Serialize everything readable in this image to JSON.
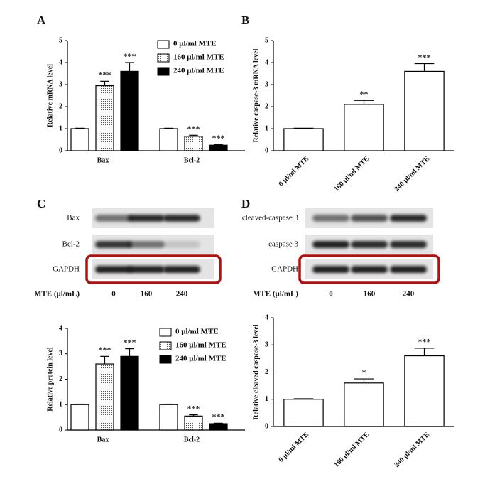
{
  "chart_data": [
    {
      "type": "bar",
      "panel": "A",
      "ylabel": "Relative mRNA level",
      "categories": [
        "Bax",
        "Bcl-2"
      ],
      "series": [
        {
          "name": "0 μl/ml MTE",
          "color": "#ffffff",
          "values": [
            1,
            1
          ],
          "errors": [
            0.02,
            0.02
          ],
          "significance": [
            null,
            null
          ]
        },
        {
          "name": "160 μl/ml MTE",
          "color": "#ffffff",
          "pattern": "dots",
          "values": [
            2.95,
            0.65
          ],
          "errors": [
            0.2,
            0.05
          ],
          "significance": [
            "***",
            "***"
          ]
        },
        {
          "name": "240 μl/ml MTE",
          "color": "#000000",
          "values": [
            3.6,
            0.25
          ],
          "errors": [
            0.4,
            0.03
          ],
          "significance": [
            "***",
            "***"
          ]
        }
      ],
      "ylim": [
        0,
        5
      ],
      "yticks": [
        0,
        1,
        2,
        3,
        4,
        5
      ],
      "legend": "top-right"
    },
    {
      "type": "bar",
      "panel": "B",
      "ylabel": "Relative caspase-3 mRNA level",
      "categories": [
        "0 μl/ml MTE",
        "160 μl/ml MTE",
        "240 μl/ml MTE"
      ],
      "values": [
        1,
        2.1,
        3.6
      ],
      "errors": [
        0.02,
        0.18,
        0.35
      ],
      "significance": [
        null,
        "**",
        "***"
      ],
      "color": "#ffffff",
      "ylim": [
        0,
        5
      ],
      "yticks": [
        0,
        1,
        2,
        3,
        4,
        5
      ]
    },
    {
      "type": "bar",
      "ylabel": "Relative protein level",
      "categories": [
        "Bax",
        "Bcl-2"
      ],
      "series": [
        {
          "name": "0 μl/ml MTE",
          "color": "#ffffff",
          "values": [
            1,
            1
          ],
          "errors": [
            0.02,
            0.02
          ],
          "significance": [
            null,
            null
          ]
        },
        {
          "name": "160 μl/ml MTE",
          "color": "#ffffff",
          "pattern": "dots",
          "values": [
            2.6,
            0.55
          ],
          "errors": [
            0.3,
            0.05
          ],
          "significance": [
            "***",
            "***"
          ]
        },
        {
          "name": "240 μl/ml MTE",
          "color": "#000000",
          "values": [
            2.9,
            0.25
          ],
          "errors": [
            0.3,
            0.02
          ],
          "significance": [
            "***",
            "***"
          ]
        }
      ],
      "ylim": [
        0,
        4
      ],
      "yticks": [
        0,
        1,
        2,
        3,
        4
      ],
      "legend": "top-right"
    },
    {
      "type": "bar",
      "ylabel": "Relative cleaved caspase-3 level",
      "categories": [
        "0 μl/ml MTE",
        "160 μl/ml MTE",
        "240 μl/ml MTE"
      ],
      "values": [
        1,
        1.6,
        2.6
      ],
      "errors": [
        0.02,
        0.15,
        0.28
      ],
      "significance": [
        null,
        "*",
        "***"
      ],
      "color": "#ffffff",
      "ylim": [
        0,
        4
      ],
      "yticks": [
        0,
        1,
        2,
        3,
        4
      ]
    }
  ],
  "blots": [
    {
      "panel": "C",
      "rows": [
        "Bax",
        "Bcl-2",
        "GAPDH"
      ],
      "xlabel": "MTE (μl/mL)",
      "lanes": [
        "0",
        "160",
        "240"
      ]
    },
    {
      "panel": "D",
      "rows": [
        "cleaved-caspase 3",
        "caspase 3",
        "GAPDH"
      ],
      "xlabel": "MTE (μl/mL)",
      "lanes": [
        "0",
        "160",
        "240"
      ]
    }
  ]
}
